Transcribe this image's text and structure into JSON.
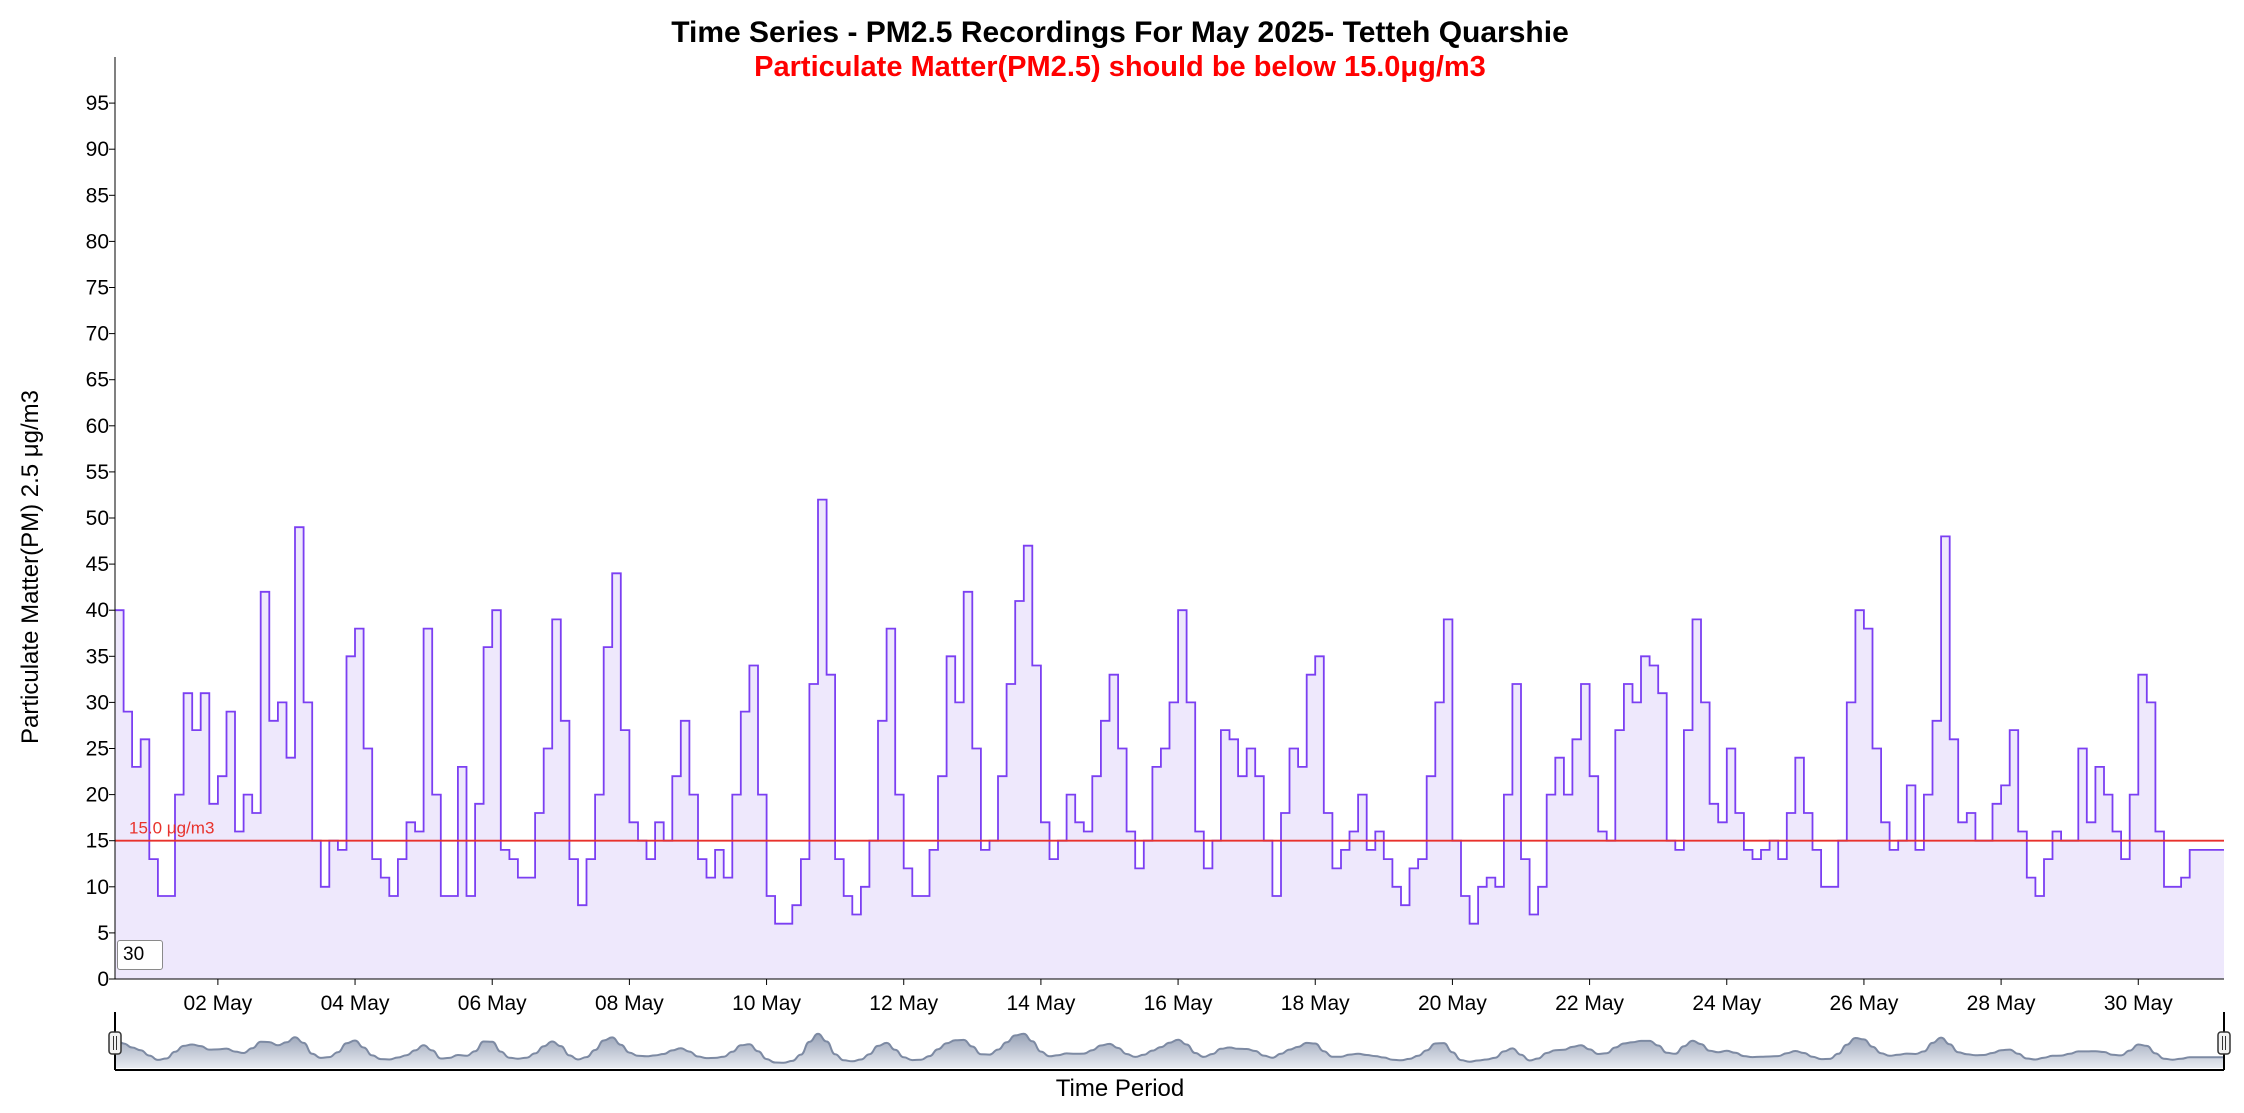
{
  "chart_data": {
    "type": "area",
    "title": "Time Series - PM2.5 Recordings For May 2025- Tetteh Quarshie",
    "subtitle": "Particulate Matter(PM2.5) should be below 15.0μg/m3",
    "xlabel": "Time Period",
    "ylabel": "Particulate Matter(PM) 2.5 μg/m3",
    "x_domain": [
      "2025-05-01",
      "2025-05-31"
    ],
    "ylim": [
      0,
      100
    ],
    "y_ticks": [
      0,
      5,
      10,
      15,
      20,
      25,
      30,
      35,
      40,
      45,
      50,
      55,
      60,
      65,
      70,
      75,
      80,
      85,
      90,
      95
    ],
    "x_ticks": [
      {
        "date": "2025-05-02",
        "label": "02 May"
      },
      {
        "date": "2025-05-04",
        "label": "04 May"
      },
      {
        "date": "2025-05-06",
        "label": "06 May"
      },
      {
        "date": "2025-05-08",
        "label": "08 May"
      },
      {
        "date": "2025-05-10",
        "label": "10 May"
      },
      {
        "date": "2025-05-12",
        "label": "12 May"
      },
      {
        "date": "2025-05-14",
        "label": "14 May"
      },
      {
        "date": "2025-05-16",
        "label": "16 May"
      },
      {
        "date": "2025-05-18",
        "label": "18 May"
      },
      {
        "date": "2025-05-20",
        "label": "20 May"
      },
      {
        "date": "2025-05-22",
        "label": "22 May"
      },
      {
        "date": "2025-05-24",
        "label": "24 May"
      },
      {
        "date": "2025-05-26",
        "label": "26 May"
      },
      {
        "date": "2025-05-28",
        "label": "28 May"
      },
      {
        "date": "2025-05-30",
        "label": "30 May"
      }
    ],
    "threshold": {
      "value": 15.0,
      "label": "15.0 μg/m3"
    },
    "rolling_window": "30",
    "grid": false,
    "series": [
      {
        "points": [
          [
            "2025-05-01 00:00",
            40
          ],
          [
            "2025-05-01 03:00",
            29
          ],
          [
            "2025-05-01 06:00",
            23
          ],
          [
            "2025-05-01 09:00",
            26
          ],
          [
            "2025-05-01 12:00",
            13
          ],
          [
            "2025-05-01 15:00",
            9
          ],
          [
            "2025-05-01 18:00",
            9
          ],
          [
            "2025-05-01 21:00",
            20
          ],
          [
            "2025-05-02 00:00",
            31
          ],
          [
            "2025-05-02 03:00",
            27
          ],
          [
            "2025-05-02 06:00",
            31
          ],
          [
            "2025-05-02 09:00",
            19
          ],
          [
            "2025-05-02 12:00",
            22
          ],
          [
            "2025-05-02 15:00",
            29
          ],
          [
            "2025-05-02 18:00",
            16
          ],
          [
            "2025-05-02 21:00",
            20
          ],
          [
            "2025-05-03 00:00",
            18
          ],
          [
            "2025-05-03 03:00",
            42
          ],
          [
            "2025-05-03 06:00",
            28
          ],
          [
            "2025-05-03 09:00",
            30
          ],
          [
            "2025-05-03 12:00",
            24
          ],
          [
            "2025-05-03 15:00",
            49
          ],
          [
            "2025-05-03 18:00",
            30
          ],
          [
            "2025-05-03 21:00",
            15
          ],
          [
            "2025-05-04 00:00",
            10
          ],
          [
            "2025-05-04 03:00",
            15
          ],
          [
            "2025-05-04 06:00",
            14
          ],
          [
            "2025-05-04 09:00",
            35
          ],
          [
            "2025-05-04 12:00",
            38
          ],
          [
            "2025-05-04 15:00",
            25
          ],
          [
            "2025-05-04 18:00",
            13
          ],
          [
            "2025-05-04 21:00",
            11
          ],
          [
            "2025-05-05 00:00",
            9
          ],
          [
            "2025-05-05 03:00",
            13
          ],
          [
            "2025-05-05 06:00",
            17
          ],
          [
            "2025-05-05 09:00",
            16
          ],
          [
            "2025-05-05 12:00",
            38
          ],
          [
            "2025-05-05 15:00",
            20
          ],
          [
            "2025-05-05 18:00",
            9
          ],
          [
            "2025-05-05 21:00",
            9
          ],
          [
            "2025-05-06 00:00",
            23
          ],
          [
            "2025-05-06 03:00",
            9
          ],
          [
            "2025-05-06 06:00",
            19
          ],
          [
            "2025-05-06 09:00",
            36
          ],
          [
            "2025-05-06 12:00",
            40
          ],
          [
            "2025-05-06 15:00",
            14
          ],
          [
            "2025-05-06 18:00",
            13
          ],
          [
            "2025-05-06 21:00",
            11
          ],
          [
            "2025-05-07 00:00",
            11
          ],
          [
            "2025-05-07 03:00",
            18
          ],
          [
            "2025-05-07 06:00",
            25
          ],
          [
            "2025-05-07 09:00",
            39
          ],
          [
            "2025-05-07 12:00",
            28
          ],
          [
            "2025-05-07 15:00",
            13
          ],
          [
            "2025-05-07 18:00",
            8
          ],
          [
            "2025-05-07 21:00",
            13
          ],
          [
            "2025-05-08 00:00",
            20
          ],
          [
            "2025-05-08 03:00",
            36
          ],
          [
            "2025-05-08 06:00",
            44
          ],
          [
            "2025-05-08 09:00",
            27
          ],
          [
            "2025-05-08 12:00",
            17
          ],
          [
            "2025-05-08 15:00",
            15
          ],
          [
            "2025-05-08 18:00",
            13
          ],
          [
            "2025-05-08 21:00",
            17
          ],
          [
            "2025-05-09 00:00",
            15
          ],
          [
            "2025-05-09 03:00",
            22
          ],
          [
            "2025-05-09 06:00",
            28
          ],
          [
            "2025-05-09 09:00",
            20
          ],
          [
            "2025-05-09 12:00",
            13
          ],
          [
            "2025-05-09 15:00",
            11
          ],
          [
            "2025-05-09 18:00",
            14
          ],
          [
            "2025-05-09 21:00",
            11
          ],
          [
            "2025-05-10 00:00",
            20
          ],
          [
            "2025-05-10 03:00",
            29
          ],
          [
            "2025-05-10 06:00",
            34
          ],
          [
            "2025-05-10 09:00",
            20
          ],
          [
            "2025-05-10 12:00",
            9
          ],
          [
            "2025-05-10 15:00",
            6
          ],
          [
            "2025-05-10 18:00",
            6
          ],
          [
            "2025-05-10 21:00",
            8
          ],
          [
            "2025-05-11 00:00",
            13
          ],
          [
            "2025-05-11 03:00",
            32
          ],
          [
            "2025-05-11 06:00",
            52
          ],
          [
            "2025-05-11 09:00",
            33
          ],
          [
            "2025-05-11 12:00",
            13
          ],
          [
            "2025-05-11 15:00",
            9
          ],
          [
            "2025-05-11 18:00",
            7
          ],
          [
            "2025-05-11 21:00",
            10
          ],
          [
            "2025-05-12 00:00",
            15
          ],
          [
            "2025-05-12 03:00",
            28
          ],
          [
            "2025-05-12 06:00",
            38
          ],
          [
            "2025-05-12 09:00",
            20
          ],
          [
            "2025-05-12 12:00",
            12
          ],
          [
            "2025-05-12 15:00",
            9
          ],
          [
            "2025-05-12 18:00",
            9
          ],
          [
            "2025-05-12 21:00",
            14
          ],
          [
            "2025-05-13 00:00",
            22
          ],
          [
            "2025-05-13 03:00",
            35
          ],
          [
            "2025-05-13 06:00",
            30
          ],
          [
            "2025-05-13 09:00",
            42
          ],
          [
            "2025-05-13 12:00",
            25
          ],
          [
            "2025-05-13 15:00",
            14
          ],
          [
            "2025-05-13 18:00",
            15
          ],
          [
            "2025-05-13 21:00",
            22
          ],
          [
            "2025-05-14 00:00",
            32
          ],
          [
            "2025-05-14 03:00",
            41
          ],
          [
            "2025-05-14 06:00",
            47
          ],
          [
            "2025-05-14 09:00",
            34
          ],
          [
            "2025-05-14 12:00",
            17
          ],
          [
            "2025-05-14 15:00",
            13
          ],
          [
            "2025-05-14 18:00",
            15
          ],
          [
            "2025-05-14 21:00",
            20
          ],
          [
            "2025-05-15 00:00",
            17
          ],
          [
            "2025-05-15 03:00",
            16
          ],
          [
            "2025-05-15 06:00",
            22
          ],
          [
            "2025-05-15 09:00",
            28
          ],
          [
            "2025-05-15 12:00",
            33
          ],
          [
            "2025-05-15 15:00",
            25
          ],
          [
            "2025-05-15 18:00",
            16
          ],
          [
            "2025-05-15 21:00",
            12
          ],
          [
            "2025-05-16 00:00",
            15
          ],
          [
            "2025-05-16 03:00",
            23
          ],
          [
            "2025-05-16 06:00",
            25
          ],
          [
            "2025-05-16 09:00",
            30
          ],
          [
            "2025-05-16 12:00",
            40
          ],
          [
            "2025-05-16 15:00",
            30
          ],
          [
            "2025-05-16 18:00",
            16
          ],
          [
            "2025-05-16 21:00",
            12
          ],
          [
            "2025-05-17 00:00",
            15
          ],
          [
            "2025-05-17 03:00",
            27
          ],
          [
            "2025-05-17 06:00",
            26
          ],
          [
            "2025-05-17 09:00",
            22
          ],
          [
            "2025-05-17 12:00",
            25
          ],
          [
            "2025-05-17 15:00",
            22
          ],
          [
            "2025-05-17 18:00",
            15
          ],
          [
            "2025-05-17 21:00",
            9
          ],
          [
            "2025-05-18 00:00",
            18
          ],
          [
            "2025-05-18 03:00",
            25
          ],
          [
            "2025-05-18 06:00",
            23
          ],
          [
            "2025-05-18 09:00",
            33
          ],
          [
            "2025-05-18 12:00",
            35
          ],
          [
            "2025-05-18 15:00",
            18
          ],
          [
            "2025-05-18 18:00",
            12
          ],
          [
            "2025-05-18 21:00",
            14
          ],
          [
            "2025-05-19 00:00",
            16
          ],
          [
            "2025-05-19 03:00",
            20
          ],
          [
            "2025-05-19 06:00",
            14
          ],
          [
            "2025-05-19 09:00",
            16
          ],
          [
            "2025-05-19 12:00",
            13
          ],
          [
            "2025-05-19 15:00",
            10
          ],
          [
            "2025-05-19 18:00",
            8
          ],
          [
            "2025-05-19 21:00",
            12
          ],
          [
            "2025-05-20 00:00",
            13
          ],
          [
            "2025-05-20 03:00",
            22
          ],
          [
            "2025-05-20 06:00",
            30
          ],
          [
            "2025-05-20 09:00",
            39
          ],
          [
            "2025-05-20 12:00",
            15
          ],
          [
            "2025-05-20 15:00",
            9
          ],
          [
            "2025-05-20 18:00",
            6
          ],
          [
            "2025-05-20 21:00",
            10
          ],
          [
            "2025-05-21 00:00",
            11
          ],
          [
            "2025-05-21 03:00",
            10
          ],
          [
            "2025-05-21 06:00",
            20
          ],
          [
            "2025-05-21 09:00",
            32
          ],
          [
            "2025-05-21 12:00",
            13
          ],
          [
            "2025-05-21 15:00",
            7
          ],
          [
            "2025-05-21 18:00",
            10
          ],
          [
            "2025-05-21 21:00",
            20
          ],
          [
            "2025-05-22 00:00",
            24
          ],
          [
            "2025-05-22 03:00",
            20
          ],
          [
            "2025-05-22 06:00",
            26
          ],
          [
            "2025-05-22 09:00",
            32
          ],
          [
            "2025-05-22 12:00",
            22
          ],
          [
            "2025-05-22 15:00",
            16
          ],
          [
            "2025-05-22 18:00",
            15
          ],
          [
            "2025-05-22 21:00",
            27
          ],
          [
            "2025-05-23 00:00",
            32
          ],
          [
            "2025-05-23 03:00",
            30
          ],
          [
            "2025-05-23 06:00",
            35
          ],
          [
            "2025-05-23 09:00",
            34
          ],
          [
            "2025-05-23 12:00",
            31
          ],
          [
            "2025-05-23 15:00",
            15
          ],
          [
            "2025-05-23 18:00",
            14
          ],
          [
            "2025-05-23 21:00",
            27
          ],
          [
            "2025-05-24 00:00",
            39
          ],
          [
            "2025-05-24 03:00",
            30
          ],
          [
            "2025-05-24 06:00",
            19
          ],
          [
            "2025-05-24 09:00",
            17
          ],
          [
            "2025-05-24 12:00",
            25
          ],
          [
            "2025-05-24 15:00",
            18
          ],
          [
            "2025-05-24 18:00",
            14
          ],
          [
            "2025-05-24 21:00",
            13
          ],
          [
            "2025-05-25 00:00",
            14
          ],
          [
            "2025-05-25 03:00",
            15
          ],
          [
            "2025-05-25 06:00",
            13
          ],
          [
            "2025-05-25 09:00",
            18
          ],
          [
            "2025-05-25 12:00",
            24
          ],
          [
            "2025-05-25 15:00",
            18
          ],
          [
            "2025-05-25 18:00",
            14
          ],
          [
            "2025-05-25 21:00",
            10
          ],
          [
            "2025-05-26 00:00",
            10
          ],
          [
            "2025-05-26 03:00",
            15
          ],
          [
            "2025-05-26 06:00",
            30
          ],
          [
            "2025-05-26 09:00",
            40
          ],
          [
            "2025-05-26 12:00",
            38
          ],
          [
            "2025-05-26 15:00",
            25
          ],
          [
            "2025-05-26 18:00",
            17
          ],
          [
            "2025-05-26 21:00",
            14
          ],
          [
            "2025-05-27 00:00",
            15
          ],
          [
            "2025-05-27 03:00",
            21
          ],
          [
            "2025-05-27 06:00",
            14
          ],
          [
            "2025-05-27 09:00",
            20
          ],
          [
            "2025-05-27 12:00",
            28
          ],
          [
            "2025-05-27 15:00",
            48
          ],
          [
            "2025-05-27 18:00",
            26
          ],
          [
            "2025-05-27 21:00",
            17
          ],
          [
            "2025-05-28 00:00",
            18
          ],
          [
            "2025-05-28 03:00",
            15
          ],
          [
            "2025-05-28 06:00",
            15
          ],
          [
            "2025-05-28 09:00",
            19
          ],
          [
            "2025-05-28 12:00",
            21
          ],
          [
            "2025-05-28 15:00",
            27
          ],
          [
            "2025-05-28 18:00",
            16
          ],
          [
            "2025-05-28 21:00",
            11
          ],
          [
            "2025-05-29 00:00",
            9
          ],
          [
            "2025-05-29 03:00",
            13
          ],
          [
            "2025-05-29 06:00",
            16
          ],
          [
            "2025-05-29 09:00",
            15
          ],
          [
            "2025-05-29 12:00",
            15
          ],
          [
            "2025-05-29 15:00",
            25
          ],
          [
            "2025-05-29 18:00",
            17
          ],
          [
            "2025-05-29 21:00",
            23
          ],
          [
            "2025-05-30 00:00",
            20
          ],
          [
            "2025-05-30 03:00",
            16
          ],
          [
            "2025-05-30 06:00",
            13
          ],
          [
            "2025-05-30 09:00",
            20
          ],
          [
            "2025-05-30 12:00",
            33
          ],
          [
            "2025-05-30 15:00",
            30
          ],
          [
            "2025-05-30 18:00",
            16
          ],
          [
            "2025-05-30 21:00",
            10
          ],
          [
            "2025-05-31 00:00",
            10
          ],
          [
            "2025-05-31 03:00",
            11
          ],
          [
            "2025-05-31 06:00",
            14
          ]
        ]
      }
    ]
  },
  "colors": {
    "line": "#7b3ff2",
    "fill": "#eee8fc",
    "threshold": "#e8322c",
    "subtitle": "#ff0000",
    "navigator_fill": "#cfd4de",
    "navigator_line": "#7d8aa3",
    "axis": "#000000"
  }
}
